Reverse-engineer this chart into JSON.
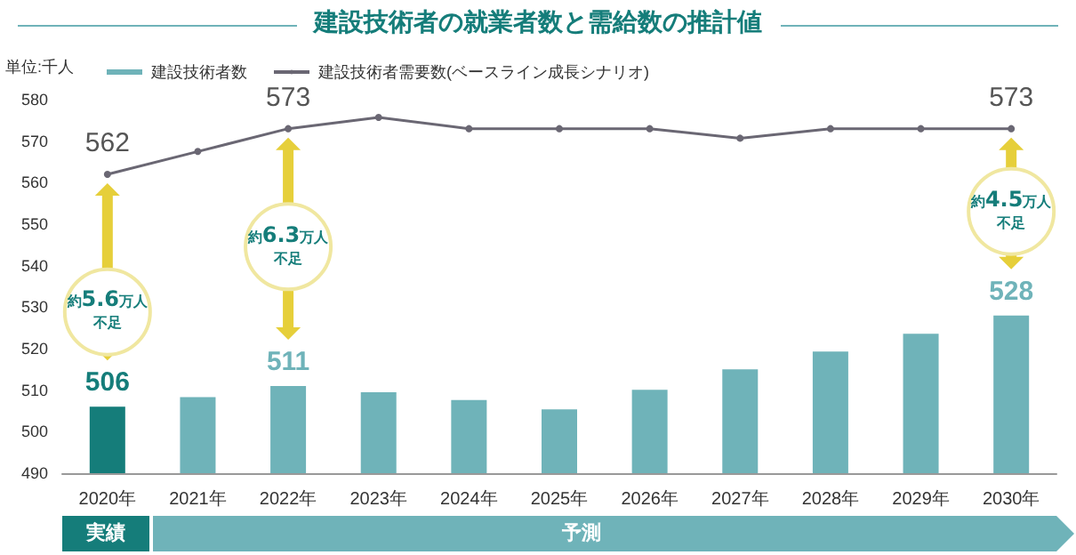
{
  "chart_data": {
    "type": "bar",
    "title": "建設技術者の就業者数と需給数の推計値",
    "ylabel": "単位:千人",
    "categories": [
      "2020年",
      "2021年",
      "2022年",
      "2023年",
      "2024年",
      "2025年",
      "2026年",
      "2027年",
      "2028年",
      "2029年",
      "2030年"
    ],
    "series": [
      {
        "name": "建設技術者数",
        "color": "#6fb3b9",
        "colors": [
          "#157d7a",
          "#6fb3b9",
          "#6fb3b9",
          "#6fb3b9",
          "#6fb3b9",
          "#6fb3b9",
          "#6fb3b9",
          "#6fb3b9",
          "#6fb3b9",
          "#6fb3b9",
          "#6fb3b9"
        ],
        "values": [
          506,
          508.3,
          511,
          509.5,
          507.6,
          505.4,
          510.1,
          515,
          519.3,
          523.6,
          528
        ],
        "value_labels": [
          "506",
          null,
          "511",
          null,
          null,
          null,
          null,
          null,
          null,
          null,
          "528"
        ]
      },
      {
        "name": "建設技術者需要数(ベースライン成長シナリオ)",
        "type": "line",
        "color": "#6a6773",
        "marker": "circle",
        "values": [
          562,
          567.5,
          573,
          575.7,
          573,
          573,
          573,
          570.7,
          573,
          573,
          573
        ],
        "value_labels": [
          "562",
          null,
          "573",
          null,
          null,
          null,
          null,
          null,
          null,
          null,
          "573"
        ]
      }
    ],
    "ylim": [
      490,
      580
    ],
    "yticks": [
      490,
      500,
      510,
      520,
      530,
      540,
      550,
      560,
      570,
      580
    ],
    "grid": false,
    "legend": "top left",
    "annotations": [
      "約5.6万人不足",
      "約6.3万人不足",
      "約4.5万人不足",
      "実績",
      "予測"
    ]
  }
}
